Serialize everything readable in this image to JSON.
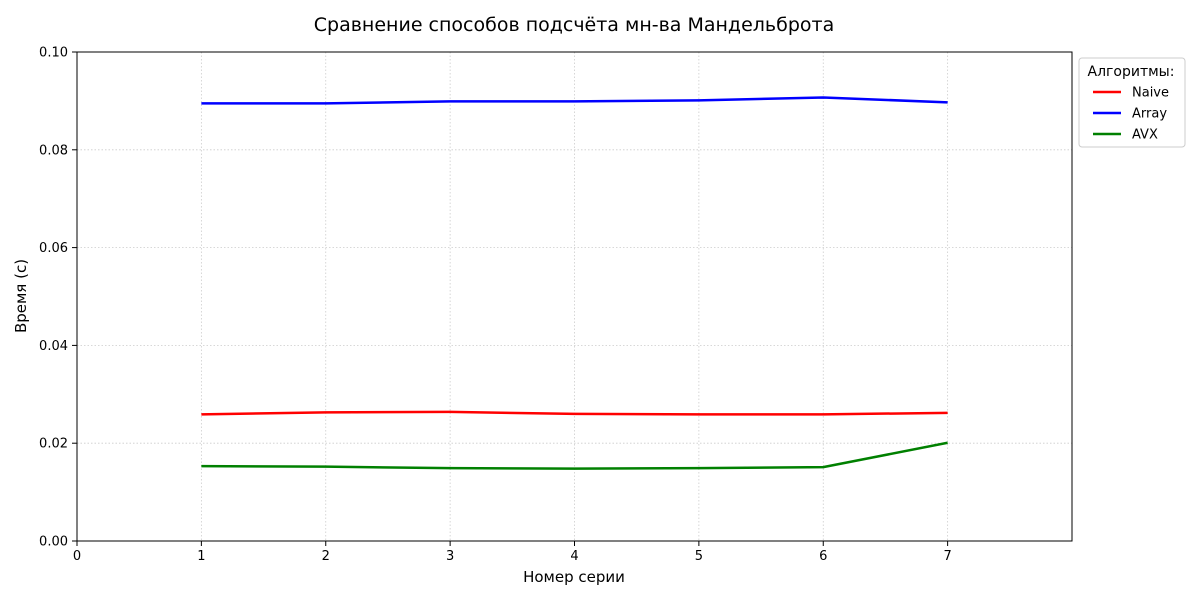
{
  "chart_data": {
    "type": "line",
    "title": "Сравнение способов подсчёта мн-ва Мандельброта",
    "xlabel": "Номер серии",
    "ylabel": "Время (с)",
    "xlim": [
      0,
      8
    ],
    "ylim": [
      0,
      0.1
    ],
    "x_ticks": [
      "0",
      "1",
      "2",
      "3",
      "4",
      "5",
      "6",
      "7"
    ],
    "y_ticks": [
      "0.00",
      "0.02",
      "0.04",
      "0.06",
      "0.08",
      "0.10"
    ],
    "x": [
      1,
      2,
      3,
      4,
      5,
      6,
      7
    ],
    "series": [
      {
        "name": "Naive",
        "color": "#ff0000",
        "values": [
          0.0259,
          0.0263,
          0.0264,
          0.026,
          0.0259,
          0.0259,
          0.0262
        ]
      },
      {
        "name": "Array",
        "color": "#0000ff",
        "values": [
          0.0895,
          0.0895,
          0.0899,
          0.0899,
          0.0901,
          0.0907,
          0.0897
        ]
      },
      {
        "name": "AVX",
        "color": "#008000",
        "values": [
          0.0153,
          0.0152,
          0.0149,
          0.0148,
          0.0149,
          0.0151,
          0.0201
        ]
      }
    ],
    "legend": {
      "title": "Алгоритмы:",
      "placement": "outside-top-right"
    },
    "grid": true
  }
}
